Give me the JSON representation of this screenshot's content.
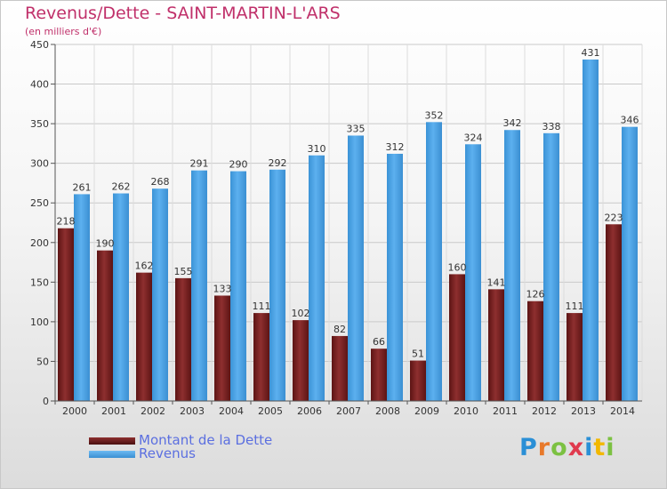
{
  "title": "Revenus/Dette - SAINT-MARTIN-L'ARS",
  "subtitle": "(en milliers d'€)",
  "logo": {
    "letters": [
      "P",
      "r",
      "o",
      "x",
      "i",
      "t",
      "i"
    ],
    "colors": [
      "#2a8fd6",
      "#e8792a",
      "#7cc142",
      "#e03a4e",
      "#2a8fd6",
      "#f2b800",
      "#7cc142"
    ]
  },
  "legend": [
    {
      "label": "Montant de la Dette",
      "color": "#6b1d1d"
    },
    {
      "label": "Revenus",
      "color": "#4ea5e6"
    }
  ],
  "colors": {
    "dette": "#7a2424",
    "revenus": "#4ea5e6",
    "title": "#c0306a",
    "legend_text": "#5b6fe0"
  },
  "chart_data": {
    "type": "bar",
    "title": "Revenus/Dette - SAINT-MARTIN-L'ARS",
    "subtitle": "(en milliers d'€)",
    "categories": [
      "2000",
      "2001",
      "2002",
      "2003",
      "2004",
      "2005",
      "2006",
      "2007",
      "2008",
      "2009",
      "2010",
      "2011",
      "2012",
      "2013",
      "2014"
    ],
    "series": [
      {
        "name": "Montant de la Dette",
        "values": [
          218,
          190,
          162,
          155,
          133,
          111,
          102,
          82,
          66,
          51,
          160,
          141,
          126,
          111,
          223
        ]
      },
      {
        "name": "Revenus",
        "values": [
          261,
          262,
          268,
          291,
          290,
          292,
          310,
          335,
          312,
          352,
          324,
          342,
          338,
          431,
          346
        ]
      }
    ],
    "ylim": [
      0,
      450
    ],
    "yticks": [
      0,
      50,
      100,
      150,
      200,
      250,
      300,
      350,
      400,
      450
    ],
    "grid": true,
    "legend_position": "bottom-left"
  }
}
